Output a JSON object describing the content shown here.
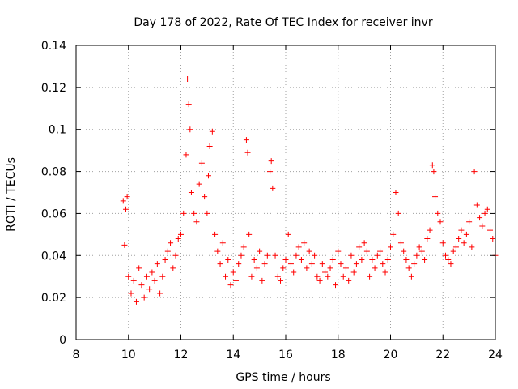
{
  "chart_data": {
    "type": "scatter",
    "title": "Day 178 of 2022, Rate Of TEC Index for receiver invr",
    "xlabel": "GPS time / hours",
    "ylabel": "ROTI / TECUs",
    "xlim": [
      8,
      24
    ],
    "ylim": [
      0,
      0.14
    ],
    "xticks": [
      8,
      10,
      12,
      14,
      16,
      18,
      20,
      22,
      24
    ],
    "xtick_labels": [
      "8",
      "10",
      "12",
      "14",
      "16",
      "18",
      "20",
      "22",
      "24"
    ],
    "yticks": [
      0,
      0.02,
      0.04,
      0.06,
      0.08,
      0.1,
      0.12,
      0.14
    ],
    "ytick_labels": [
      "0",
      "0.02",
      "0.04",
      "0.06",
      "0.08",
      "0.1",
      "0.12",
      "0.14"
    ],
    "grid": true,
    "marker": "+",
    "color": "#ff0000",
    "series": [
      {
        "name": "ROTI",
        "x": [
          9.8,
          9.85,
          9.9,
          9.95,
          10.0,
          10.1,
          10.2,
          10.3,
          10.4,
          10.5,
          10.6,
          10.7,
          10.8,
          10.9,
          11.0,
          11.1,
          11.2,
          11.3,
          11.4,
          11.5,
          11.6,
          11.7,
          11.8,
          11.9,
          12.0,
          12.1,
          12.2,
          12.25,
          12.3,
          12.35,
          12.4,
          12.5,
          12.6,
          12.7,
          12.8,
          12.9,
          13.0,
          13.05,
          13.1,
          13.2,
          13.3,
          13.4,
          13.5,
          13.6,
          13.7,
          13.8,
          13.9,
          14.0,
          14.1,
          14.2,
          14.3,
          14.4,
          14.5,
          14.55,
          14.6,
          14.7,
          14.8,
          14.9,
          15.0,
          15.1,
          15.2,
          15.3,
          15.4,
          15.45,
          15.5,
          15.6,
          15.7,
          15.8,
          15.9,
          16.0,
          16.1,
          16.2,
          16.3,
          16.4,
          16.5,
          16.6,
          16.7,
          16.8,
          16.9,
          17.0,
          17.1,
          17.2,
          17.3,
          17.4,
          17.5,
          17.6,
          17.7,
          17.8,
          17.9,
          18.0,
          18.1,
          18.2,
          18.3,
          18.4,
          18.5,
          18.6,
          18.7,
          18.8,
          18.9,
          19.0,
          19.1,
          19.2,
          19.3,
          19.4,
          19.5,
          19.6,
          19.7,
          19.8,
          19.9,
          20.0,
          20.1,
          20.2,
          20.3,
          20.4,
          20.5,
          20.6,
          20.7,
          20.8,
          20.9,
          21.0,
          21.1,
          21.2,
          21.3,
          21.4,
          21.5,
          21.6,
          21.65,
          21.7,
          21.8,
          21.9,
          22.0,
          22.1,
          22.2,
          22.3,
          22.4,
          22.5,
          22.6,
          22.7,
          22.8,
          22.9,
          23.0,
          23.1,
          23.2,
          23.3,
          23.4,
          23.5,
          23.6,
          23.7,
          23.8,
          23.9,
          24.0
        ],
        "y": [
          0.066,
          0.045,
          0.062,
          0.068,
          0.03,
          0.022,
          0.028,
          0.018,
          0.034,
          0.026,
          0.02,
          0.03,
          0.024,
          0.032,
          0.028,
          0.036,
          0.022,
          0.03,
          0.038,
          0.042,
          0.046,
          0.034,
          0.04,
          0.048,
          0.05,
          0.06,
          0.088,
          0.124,
          0.112,
          0.1,
          0.07,
          0.06,
          0.056,
          0.074,
          0.084,
          0.068,
          0.06,
          0.078,
          0.092,
          0.099,
          0.05,
          0.042,
          0.036,
          0.046,
          0.03,
          0.038,
          0.026,
          0.032,
          0.028,
          0.036,
          0.04,
          0.044,
          0.095,
          0.089,
          0.05,
          0.03,
          0.038,
          0.034,
          0.042,
          0.028,
          0.036,
          0.04,
          0.08,
          0.085,
          0.072,
          0.04,
          0.03,
          0.028,
          0.034,
          0.038,
          0.05,
          0.036,
          0.032,
          0.04,
          0.044,
          0.038,
          0.046,
          0.034,
          0.042,
          0.036,
          0.04,
          0.03,
          0.028,
          0.036,
          0.032,
          0.03,
          0.034,
          0.038,
          0.026,
          0.042,
          0.036,
          0.03,
          0.034,
          0.028,
          0.04,
          0.032,
          0.036,
          0.044,
          0.038,
          0.046,
          0.042,
          0.03,
          0.038,
          0.034,
          0.04,
          0.042,
          0.036,
          0.032,
          0.038,
          0.044,
          0.05,
          0.07,
          0.06,
          0.046,
          0.042,
          0.038,
          0.034,
          0.03,
          0.036,
          0.04,
          0.044,
          0.042,
          0.038,
          0.048,
          0.052,
          0.083,
          0.08,
          0.068,
          0.06,
          0.056,
          0.046,
          0.04,
          0.038,
          0.036,
          0.042,
          0.044,
          0.048,
          0.052,
          0.046,
          0.05,
          0.056,
          0.044,
          0.08,
          0.064,
          0.058,
          0.054,
          0.06,
          0.062,
          0.052,
          0.048,
          0.04
        ]
      }
    ]
  }
}
